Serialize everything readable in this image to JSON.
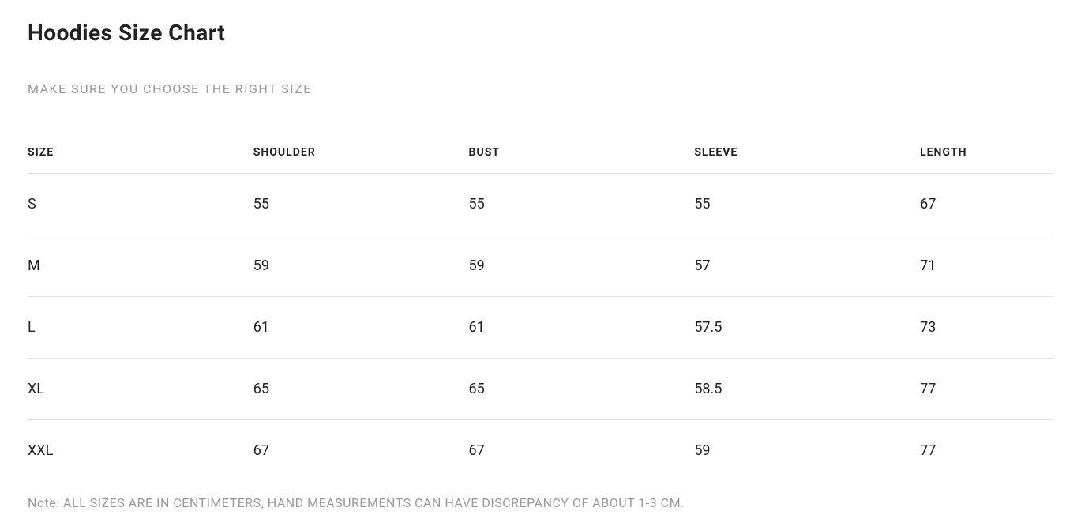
{
  "title": "Hoodies Size Chart",
  "subtitle": "MAKE SURE YOU CHOOSE THE RIGHT SIZE",
  "table": {
    "columns": [
      "SIZE",
      "SHOULDER",
      "BUST",
      "SLEEVE",
      "LENGTH"
    ],
    "rows": [
      [
        "S",
        "55",
        "55",
        "55",
        "67"
      ],
      [
        "M",
        "59",
        "59",
        "57",
        "71"
      ],
      [
        "L",
        "61",
        "61",
        "57.5",
        "73"
      ],
      [
        "XL",
        "65",
        "65",
        "58.5",
        "77"
      ],
      [
        "XXL",
        "67",
        "67",
        "59",
        "77"
      ]
    ]
  },
  "note": "Note: ALL SIZES ARE IN CENTIMETERS, HAND MEASUREMENTS CAN HAVE DISCREPANCY OF ABOUT 1-3 CM.",
  "styling": {
    "background_color": "#ffffff",
    "title_color": "#222222",
    "title_fontsize": 28,
    "subtitle_color": "#999999",
    "subtitle_fontsize": 16,
    "header_color": "#222222",
    "header_fontsize": 14,
    "cell_color": "#222222",
    "cell_fontsize": 18,
    "border_color": "#e5e5e5",
    "note_color": "#999999",
    "note_fontsize": 16
  }
}
